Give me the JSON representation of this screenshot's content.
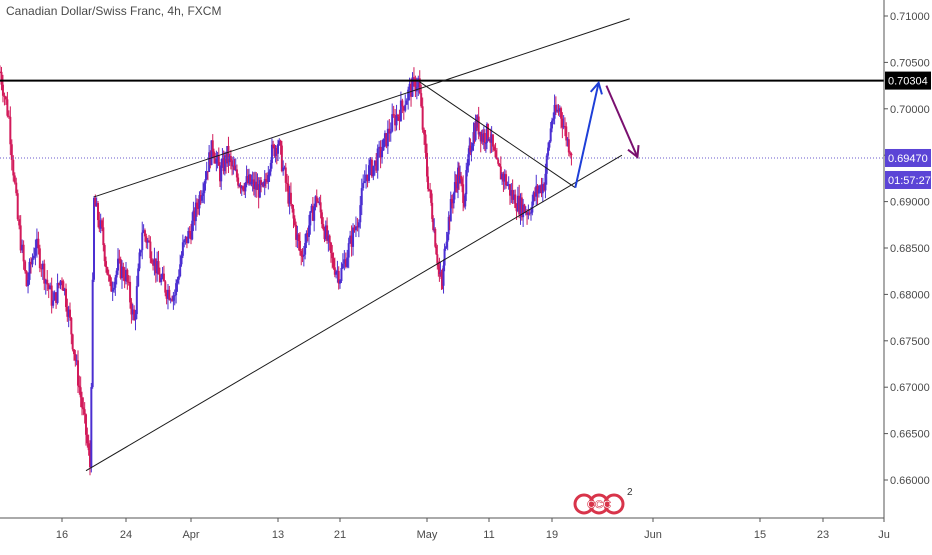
{
  "header": {
    "symbol_name": "Canadian Dollar/Swiss Franc",
    "interval": "4h",
    "exchange": "FXCM"
  },
  "price_axis": {
    "labels": [
      "0.71000",
      "0.70500",
      "0.70000",
      "0.69500",
      "0.69000",
      "0.68500",
      "0.68000",
      "0.67500",
      "0.67000",
      "0.66500",
      "0.66000"
    ],
    "resistance_label": "0.70304",
    "last_price_label": "0.69470",
    "countdown_label": "01:57:27"
  },
  "time_axis": {
    "labels": [
      "16",
      "24",
      "Apr",
      "13",
      "21",
      "May",
      "11",
      "19",
      "Jun",
      "15",
      "23",
      "Ju"
    ]
  },
  "watermark": {
    "text": "CCC",
    "superscript": "2"
  },
  "colors": {
    "up_candle": "#4b2fd1",
    "down_candle": "#d21a5a",
    "trend_lines": "#1a1a1a",
    "resistance_line": "#000000",
    "last_price_line": "#6a5acd",
    "arrow_up": "#1e3fd8",
    "arrow_down": "#7a1070",
    "watermark": "#d8344a"
  },
  "chart_data": {
    "type": "candlestick",
    "title": "Canadian Dollar/Swiss Franc, 4h, FXCM",
    "ylim": [
      0.6575,
      0.7125
    ],
    "x_ticks": [
      "16",
      "24",
      "Apr",
      "13",
      "21",
      "May",
      "11",
      "19",
      "Jun",
      "15",
      "23",
      "Ju"
    ],
    "y_ticks": [
      0.66,
      0.665,
      0.67,
      0.675,
      0.68,
      0.685,
      0.69,
      0.695,
      0.7,
      0.705,
      0.71
    ],
    "resistance_level": 0.70304,
    "last_price": 0.6947,
    "close_path": [
      [
        "Mar 9",
        0.704
      ],
      [
        "Mar 10",
        0.699
      ],
      [
        "Mar 11",
        0.688
      ],
      [
        "Mar 12",
        0.681
      ],
      [
        "Mar 13",
        0.6855
      ],
      [
        "Mar 15",
        0.679
      ],
      [
        "Mar 16",
        0.682
      ],
      [
        "Mar 17",
        0.677
      ],
      [
        "Mar 18",
        0.671
      ],
      [
        "Mar 19",
        0.665
      ],
      [
        "Mar 19",
        0.6615
      ],
      [
        "Mar 20",
        0.69
      ],
      [
        "Mar 21",
        0.6865
      ],
      [
        "Mar 22",
        0.6805
      ],
      [
        "Mar 23",
        0.683
      ],
      [
        "Mar 24",
        0.682
      ],
      [
        "Mar 25",
        0.677
      ],
      [
        "Mar 26",
        0.687
      ],
      [
        "Mar 27",
        0.685
      ],
      [
        "Mar 28",
        0.682
      ],
      [
        "Mar 29",
        0.6805
      ],
      [
        "Mar 30",
        0.68
      ],
      [
        "Mar 31",
        0.685
      ],
      [
        "Apr 1",
        0.687
      ],
      [
        "Apr 2",
        0.69
      ],
      [
        "Apr 3",
        0.693
      ],
      [
        "Apr 4",
        0.696
      ],
      [
        "Apr 5",
        0.693
      ],
      [
        "Apr 6",
        0.695
      ],
      [
        "Apr 7",
        0.693
      ],
      [
        "Apr 8",
        0.692
      ],
      [
        "Apr 9",
        0.692
      ],
      [
        "Apr 10",
        0.6915
      ],
      [
        "Apr 11",
        0.691
      ],
      [
        "Apr 12",
        0.695
      ],
      [
        "Apr 13",
        0.6965
      ],
      [
        "Apr 14",
        0.692
      ],
      [
        "Apr 15",
        0.688
      ],
      [
        "Apr 16",
        0.684
      ],
      [
        "Apr 17",
        0.6875
      ],
      [
        "Apr 18",
        0.6905
      ],
      [
        "Apr 19",
        0.687
      ],
      [
        "Apr 20",
        0.6835
      ],
      [
        "Apr 21",
        0.682
      ],
      [
        "Apr 22",
        0.685
      ],
      [
        "Apr 23",
        0.688
      ],
      [
        "Apr 24",
        0.693
      ],
      [
        "Apr 25",
        0.694
      ],
      [
        "Apr 26",
        0.696
      ],
      [
        "Apr 27",
        0.6985
      ],
      [
        "Apr 28",
        0.7
      ],
      [
        "Apr 29",
        0.702
      ],
      [
        "Apr 30",
        0.703
      ],
      [
        "May 1",
        0.693
      ],
      [
        "May 2",
        0.688
      ],
      [
        "May 3",
        0.682
      ],
      [
        "May 3",
        0.681
      ],
      [
        "May 4",
        0.686
      ],
      [
        "May 5",
        0.69
      ],
      [
        "May 6",
        0.693
      ],
      [
        "May 7",
        0.6905
      ],
      [
        "May 8",
        0.696
      ],
      [
        "May 9",
        0.6985
      ],
      [
        "May 10",
        0.697
      ],
      [
        "May 11",
        0.6975
      ],
      [
        "May 12",
        0.6935
      ],
      [
        "May 13",
        0.6925
      ],
      [
        "May 14",
        0.6905
      ],
      [
        "May 15",
        0.6895
      ],
      [
        "May 16",
        0.689
      ],
      [
        "May 17",
        0.691
      ],
      [
        "May 18",
        0.692
      ],
      [
        "May 19",
        0.699
      ],
      [
        "May 20",
        0.7
      ],
      [
        "May 21",
        0.6965
      ],
      [
        "May 22",
        0.6947
      ]
    ],
    "trend_lines": [
      {
        "name": "upper rising line",
        "from": [
          "Mar 20",
          0.6905
        ],
        "to": [
          "May 29",
          0.7097
        ]
      },
      {
        "name": "lower rising line",
        "from": [
          "Mar 19",
          0.661
        ],
        "to": [
          "May 28",
          0.695
        ]
      },
      {
        "name": "descending line",
        "from": [
          "Apr 30",
          0.703
        ],
        "to": [
          "May 22",
          0.6915
        ]
      }
    ],
    "projection_arrows": [
      {
        "direction": "up",
        "from": [
          "May 22",
          0.6915
        ],
        "to": [
          "May 25",
          0.7028
        ]
      },
      {
        "direction": "down",
        "from": [
          "May 26",
          0.7025
        ],
        "to": [
          "May 30",
          0.6948
        ]
      }
    ],
    "grid": false
  }
}
